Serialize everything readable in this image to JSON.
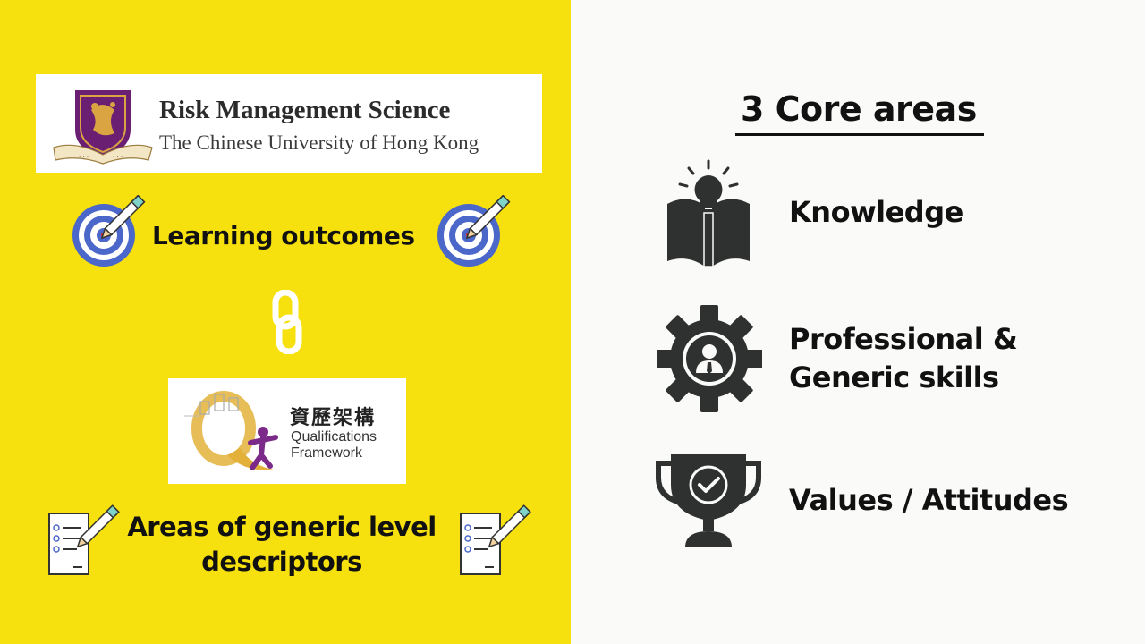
{
  "left": {
    "logo": {
      "title": "Risk Management Science",
      "subtitle": "The Chinese University of Hong Kong"
    },
    "learning_outcomes_label": "Learning outcomes",
    "link_icon": "chain-link-icon",
    "qf": {
      "chinese": "資歷架構",
      "line1": "Qualifications",
      "line2": "Framework"
    },
    "areas_line1": "Areas of generic level",
    "areas_line2": "descriptors"
  },
  "right": {
    "title": "3 Core areas",
    "areas": [
      {
        "icon": "book-lightbulb-icon",
        "label_lines": [
          "Knowledge"
        ]
      },
      {
        "icon": "gear-person-icon",
        "label_lines": [
          "Professional &",
          "Generic skills"
        ]
      },
      {
        "icon": "trophy-check-icon",
        "label_lines": [
          "Values / Attitudes"
        ]
      }
    ]
  },
  "colors": {
    "left_background": "#f6e00d",
    "right_background": "#fafaf8",
    "icon_dark": "#2f3131",
    "target_blue": "#4a67c9",
    "cuhk_purple": "#6a1f73",
    "cuhk_gold": "#d9a441",
    "qf_purple": "#7b2a8a",
    "qf_gold": "#e3b13a"
  }
}
